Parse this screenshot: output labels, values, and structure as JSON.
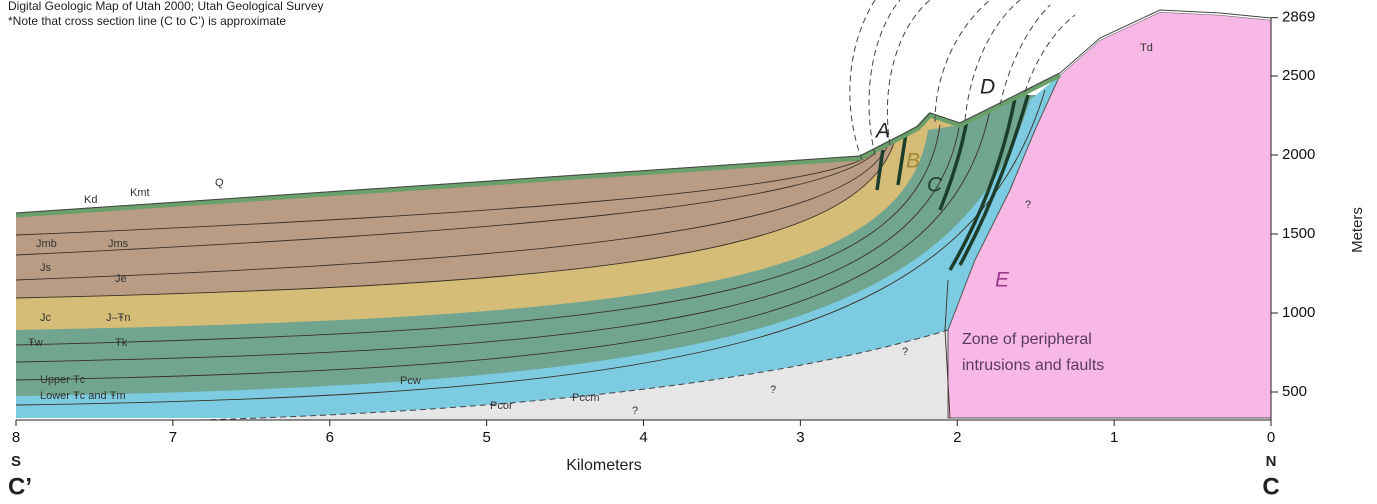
{
  "header": {
    "source": "Digital Geologic Map of Utah 2000; Utah Geological Survey",
    "note": "*Note that cross section line (C to C’) is approximate"
  },
  "x_axis": {
    "label": "Kilometers",
    "ticks": [
      8,
      7,
      6,
      5,
      4,
      3,
      2,
      1,
      0
    ],
    "left_end": {
      "direction": "S",
      "point": "C’"
    },
    "right_end": {
      "direction": "N",
      "point": "C"
    }
  },
  "y_axis": {
    "label": "Meters",
    "ticks": [
      500,
      1000,
      1500,
      2000,
      2500,
      2869
    ]
  },
  "units": [
    "Q",
    "Kmt",
    "Kd",
    "Jmb",
    "Jms",
    "Js",
    "Je",
    "Jc",
    "J–Ŧn",
    "Ŧw",
    "Ŧk",
    "Upper Ŧc",
    "Lower Ŧc and Ŧm",
    "Pcw",
    "Pcor",
    "Pccm",
    "Td"
  ],
  "features": [
    "A",
    "B",
    "C",
    "D",
    "E"
  ],
  "queries": [
    "?",
    "?",
    "?",
    "?"
  ],
  "zone": [
    "Zone of peripheral",
    "intrusions and faults"
  ]
}
